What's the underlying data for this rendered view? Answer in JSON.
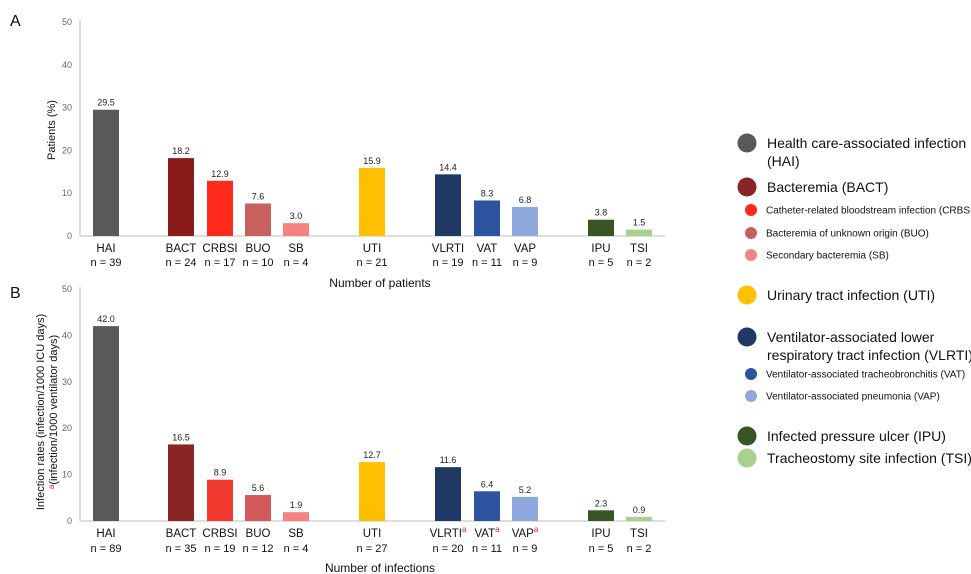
{
  "chart_data": [
    {
      "type": "bar",
      "panel": "A",
      "ylabel": "Patients (%)",
      "ylim": [
        0,
        50
      ],
      "yticks": [
        0,
        10,
        20,
        30,
        40,
        50
      ],
      "xlabel": "Number of patients",
      "categories": [
        "HAI",
        "BACT",
        "CRBSI",
        "BUO",
        "SB",
        "UTI",
        "VLRTI",
        "VAT",
        "VAP",
        "IPU",
        "TSI"
      ],
      "values": [
        29.5,
        18.2,
        12.9,
        7.6,
        3.0,
        15.9,
        14.4,
        8.3,
        6.8,
        3.8,
        1.5
      ],
      "value_labels": [
        "29.5",
        "18.2",
        "12.9",
        "7.6",
        "3.0",
        "15.9",
        "14.4",
        "8.3",
        "6.8",
        "3.8",
        "1.5"
      ],
      "n_labels": [
        "n = 39",
        "n = 24",
        "n = 17",
        "n = 10",
        "n = 4",
        "n = 21",
        "n = 19",
        "n = 11",
        "n = 9",
        "n = 5",
        "n = 2"
      ],
      "colors": [
        "#595959",
        "#8b1a1a",
        "#ff2a1a",
        "#c96060",
        "#f58282",
        "#ffc000",
        "#1f3864",
        "#2e54a0",
        "#8fa9dc",
        "#375623",
        "#a9d18e"
      ]
    },
    {
      "type": "bar",
      "panel": "B",
      "ylabel_line1": "Infection rates (infection/1000 ICU days)",
      "ylabel_line2_marker": "a",
      "ylabel_line2": "(infection/1000 ventilator days)",
      "ylim": [
        0,
        50
      ],
      "yticks": [
        0,
        10,
        20,
        30,
        40,
        50
      ],
      "xlabel": "Number of infections",
      "categories": [
        "HAI",
        "BACT",
        "CRBSI",
        "BUO",
        "SB",
        "UTI",
        "VLRTI",
        "VAT",
        "VAP",
        "IPU",
        "TSI"
      ],
      "category_markers": [
        "",
        "",
        "",
        "",
        "",
        "",
        "a",
        "a",
        "a",
        "",
        ""
      ],
      "values": [
        42.0,
        16.5,
        8.9,
        5.6,
        1.9,
        12.7,
        11.6,
        6.4,
        5.2,
        2.3,
        0.9
      ],
      "value_labels": [
        "42.0",
        "16.5",
        "8.9",
        "5.6",
        "1.9",
        "12.7",
        "11.6",
        "6.4",
        "5.2",
        "2.3",
        "0.9"
      ],
      "n_labels": [
        "n = 89",
        "n = 35",
        "n = 19",
        "n = 12",
        "n = 4",
        "n = 27",
        "n = 20",
        "n = 11",
        "n = 9",
        "n = 5",
        "n = 2"
      ],
      "colors": [
        "#595959",
        "#8b2525",
        "#f23a2e",
        "#d35a5a",
        "#f58282",
        "#ffc000",
        "#1f3864",
        "#2e54a0",
        "#8fa9dc",
        "#375623",
        "#a9d18e"
      ]
    }
  ],
  "legend": [
    {
      "label": "Health care-associated infection",
      "label2": "(HAI)",
      "color": "#595959",
      "size": "big"
    },
    {
      "label": "Bacteremia (BACT)",
      "color": "#8b2525",
      "size": "big"
    },
    {
      "label": "Catheter-related bloodstream infection (CRBSI)",
      "color": "#ff2a1a",
      "size": "small"
    },
    {
      "label": "Bacteremia of unknown origin (BUO)",
      "color": "#c96060",
      "size": "small"
    },
    {
      "label": "Secondary bacteremia (SB)",
      "color": "#f58282",
      "size": "small"
    },
    {
      "label": "Urinary tract infection (UTI)",
      "color": "#ffc000",
      "size": "big"
    },
    {
      "label": "Ventilator-associated lower",
      "label2": "respiratory tract infection (VLRTI)",
      "color": "#1f3864",
      "size": "big"
    },
    {
      "label": "Ventilator-associated tracheobronchitis (VAT)",
      "color": "#2e54a0",
      "size": "small"
    },
    {
      "label": "Ventilator-associated pneumonia (VAP)",
      "color": "#8fa9dc",
      "size": "small"
    },
    {
      "label": "Infected pressure ulcer (IPU)",
      "color": "#375623",
      "size": "big"
    },
    {
      "label": "Tracheostomy site infection (TSI)",
      "color": "#a9d18e",
      "size": "big"
    }
  ]
}
